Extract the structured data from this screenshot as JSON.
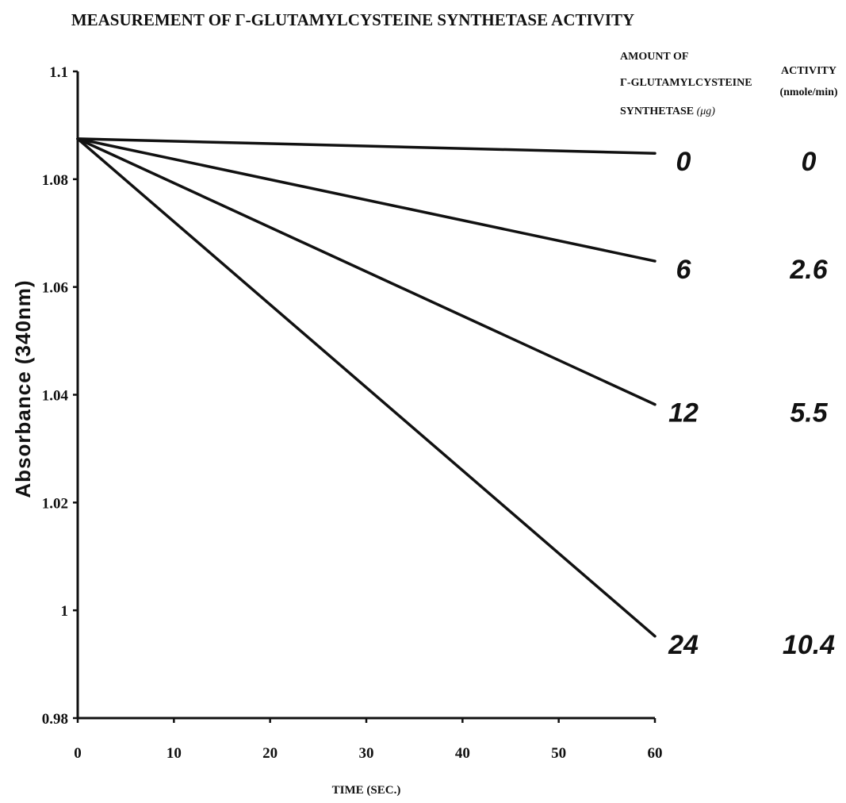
{
  "chart_data": {
    "type": "line",
    "title": "MEASUREMENT OF Γ-GLUTAMYLCYSTEINE SYNTHETASE ACTIVITY",
    "xlabel": "TIME (SEC.)",
    "ylabel": "Absorbance (340nm)",
    "xlim": [
      0,
      60
    ],
    "ylim": [
      0.98,
      1.1
    ],
    "x_ticks": [
      "0",
      "10",
      "20",
      "30",
      "40",
      "50",
      "60"
    ],
    "y_ticks": [
      "0.98",
      "1",
      "1.02",
      "1.04",
      "1.06",
      "1.08",
      "1.1"
    ],
    "grid": false,
    "legend": "none",
    "columns": {
      "amount_header": [
        "AMOUNT OF",
        "Γ-GLUTAMYLCYSTEINE",
        "SYNTHETASE"
      ],
      "amount_unit": "(μg)",
      "activity_header": "ACTIVITY",
      "activity_unit": "(nmole/min)"
    },
    "series": [
      {
        "amount": "0",
        "activity": "0",
        "x": [
          0,
          60
        ],
        "values": [
          1.0875,
          1.0848
        ]
      },
      {
        "amount": "6",
        "activity": "2.6",
        "x": [
          0,
          60
        ],
        "values": [
          1.0875,
          1.0648
        ]
      },
      {
        "amount": "12",
        "activity": "5.5",
        "x": [
          0,
          60
        ],
        "values": [
          1.0875,
          1.0382
        ]
      },
      {
        "amount": "24",
        "activity": "10.4",
        "x": [
          0,
          60
        ],
        "values": [
          1.0875,
          0.9952
        ]
      }
    ]
  }
}
